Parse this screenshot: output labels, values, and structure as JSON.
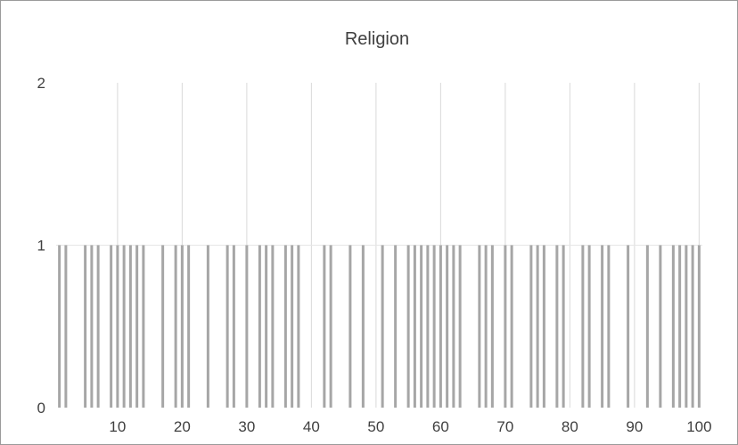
{
  "chart_data": {
    "type": "bar",
    "title": "Religion",
    "xlabel": "",
    "ylabel": "",
    "x_range": [
      1,
      100
    ],
    "ylim": [
      0,
      2
    ],
    "y_ticks": [
      0,
      1,
      2
    ],
    "x_ticks": [
      10,
      20,
      30,
      40,
      50,
      60,
      70,
      80,
      90,
      100
    ],
    "grid": "vertical",
    "legend": "none",
    "bar_color": "#a6a6a6",
    "grid_color": "#d9d9d9",
    "axis_text_color": "#404040",
    "x": [
      1,
      2,
      3,
      4,
      5,
      6,
      7,
      8,
      9,
      10,
      11,
      12,
      13,
      14,
      15,
      16,
      17,
      18,
      19,
      20,
      21,
      22,
      23,
      24,
      25,
      26,
      27,
      28,
      29,
      30,
      31,
      32,
      33,
      34,
      35,
      36,
      37,
      38,
      39,
      40,
      41,
      42,
      43,
      44,
      45,
      46,
      47,
      48,
      49,
      50,
      51,
      52,
      53,
      54,
      55,
      56,
      57,
      58,
      59,
      60,
      61,
      62,
      63,
      64,
      65,
      66,
      67,
      68,
      69,
      70,
      71,
      72,
      73,
      74,
      75,
      76,
      77,
      78,
      79,
      80,
      81,
      82,
      83,
      84,
      85,
      86,
      87,
      88,
      89,
      90,
      91,
      92,
      93,
      94,
      95,
      96,
      97,
      98,
      99,
      100
    ],
    "values": [
      1,
      1,
      0,
      0,
      1,
      1,
      1,
      0,
      1,
      1,
      1,
      1,
      1,
      1,
      0,
      0,
      1,
      0,
      1,
      1,
      1,
      0,
      0,
      1,
      0,
      0,
      1,
      1,
      0,
      1,
      0,
      1,
      1,
      1,
      0,
      1,
      1,
      1,
      0,
      0,
      0,
      1,
      1,
      0,
      0,
      1,
      0,
      1,
      0,
      0,
      1,
      0,
      1,
      0,
      1,
      1,
      1,
      1,
      1,
      1,
      1,
      1,
      1,
      0,
      0,
      1,
      1,
      1,
      0,
      1,
      1,
      0,
      0,
      1,
      1,
      1,
      0,
      1,
      1,
      0,
      0,
      1,
      1,
      0,
      1,
      1,
      0,
      0,
      1,
      0,
      0,
      1,
      0,
      1,
      0,
      1,
      1,
      1,
      1,
      1
    ]
  }
}
